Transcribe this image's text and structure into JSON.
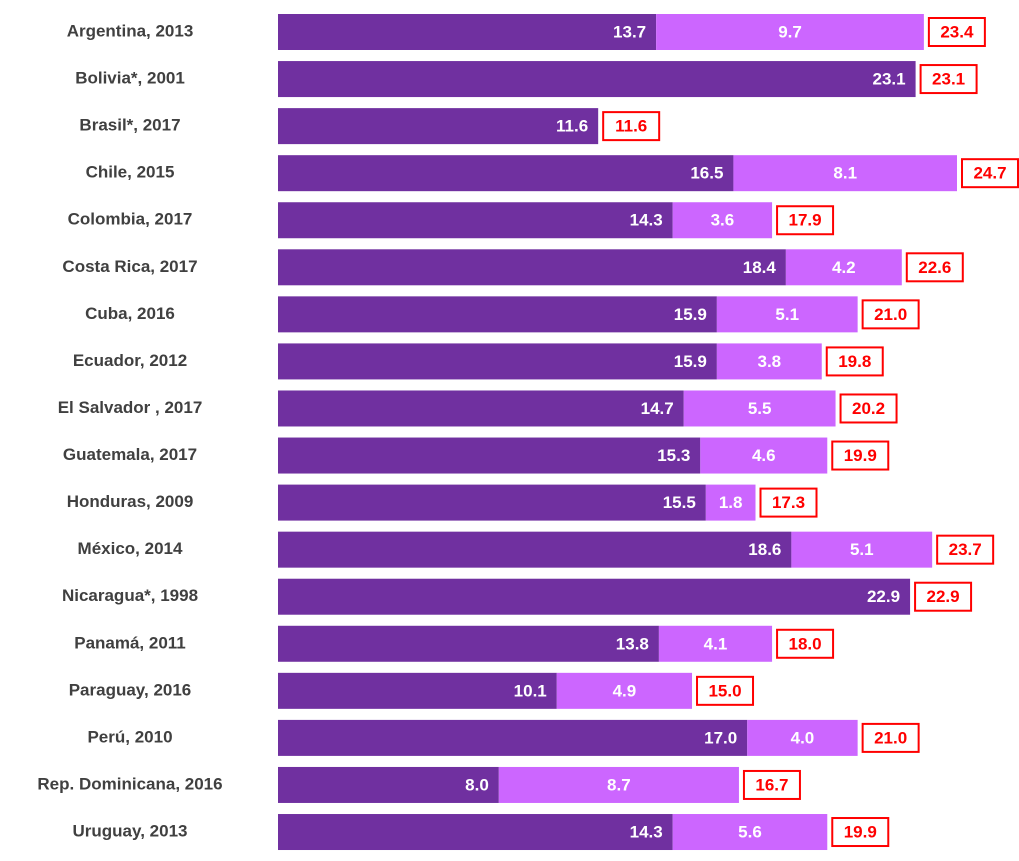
{
  "chart_data": {
    "type": "stacked-bar-horizontal",
    "categories": [
      "Argentina, 2013",
      "Bolivia*, 2001",
      "Brasil*, 2017",
      "Chile, 2015",
      "Colombia, 2017",
      "Costa Rica, 2017",
      "Cuba, 2016",
      "Ecuador, 2012",
      "El Salvador , 2017",
      "Guatemala, 2017",
      "Honduras, 2009",
      "México, 2014",
      "Nicaragua*, 1998",
      "Panamá, 2011",
      "Paraguay, 2016",
      "Perú, 2010",
      "Rep. Dominicana, 2016",
      "Uruguay, 2013"
    ],
    "series": [
      {
        "color": "#7030a0",
        "values": [
          13.7,
          23.1,
          11.6,
          16.5,
          14.3,
          18.4,
          15.9,
          15.9,
          14.7,
          15.3,
          15.5,
          18.6,
          22.9,
          13.8,
          10.1,
          17.0,
          8.0,
          14.3
        ],
        "value_labels": [
          "13.7",
          "23.1",
          "11.6",
          "16.5",
          "14.3",
          "18.4",
          "15.9",
          "15.9",
          "14.7",
          "15.3",
          "15.5",
          "18.6",
          "22.9",
          "13.8",
          "10.1",
          "17.0",
          "8.0",
          "14.3"
        ]
      },
      {
        "color": "#cc66ff",
        "values": [
          9.7,
          null,
          null,
          8.1,
          3.6,
          4.2,
          5.1,
          3.8,
          5.5,
          4.6,
          1.8,
          5.1,
          null,
          4.1,
          4.9,
          4.0,
          8.7,
          5.6
        ],
        "value_labels": [
          "9.7",
          null,
          null,
          "8.1",
          "3.6",
          "4.2",
          "5.1",
          "3.8",
          "5.5",
          "4.6",
          "1.8",
          "5.1",
          null,
          "4.1",
          "4.9",
          "4.0",
          "8.7",
          "5.6"
        ]
      }
    ],
    "total_labels": [
      "23.4",
      "23.1",
      "11.6",
      "24.7",
      "17.9",
      "22.6",
      "21.0",
      "19.8",
      "20.2",
      "19.9",
      "17.3",
      "23.7",
      "22.9",
      "18.0",
      "15.0",
      "21.0",
      "16.7",
      "19.9"
    ],
    "total_color": "#ff0000"
  }
}
